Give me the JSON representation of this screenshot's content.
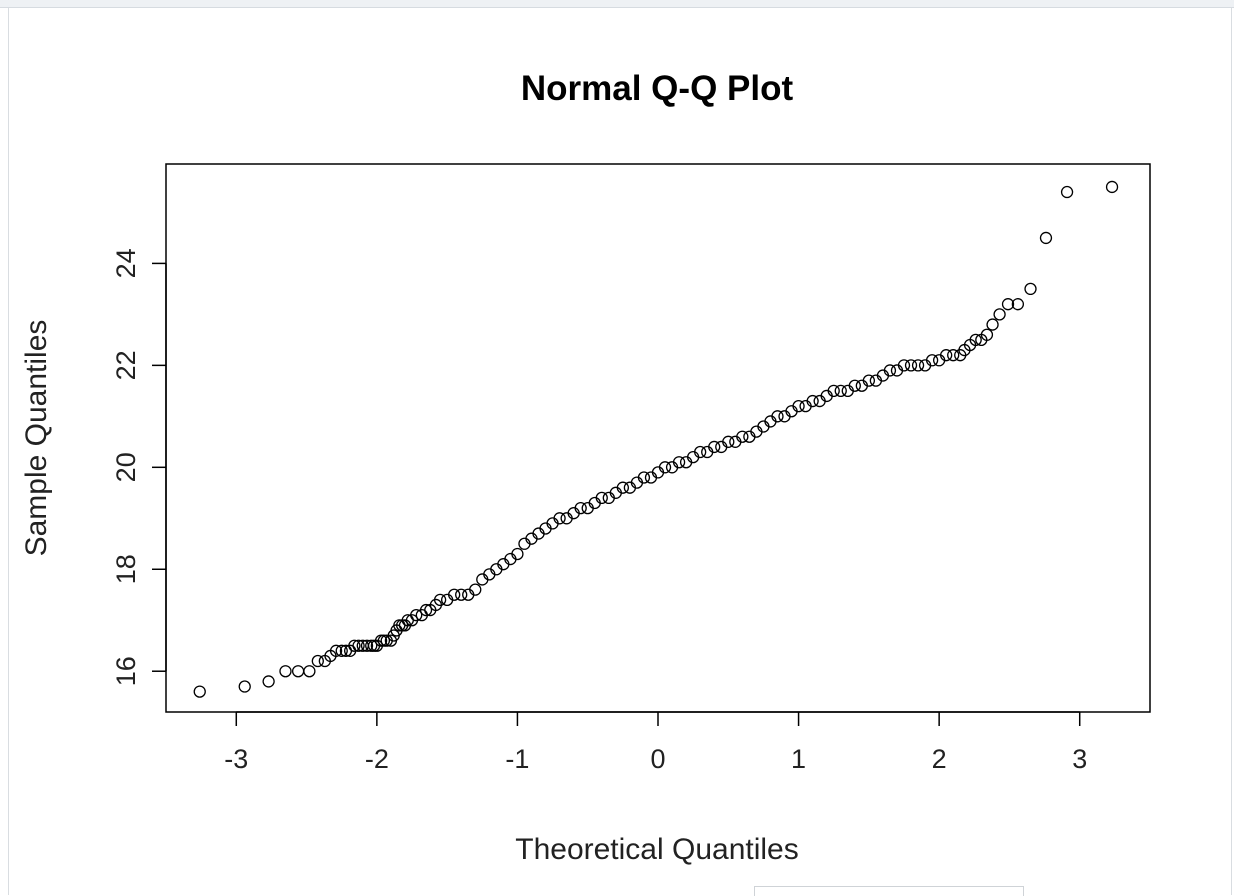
{
  "chart_data": {
    "type": "scatter",
    "title": "Normal Q-Q Plot",
    "xlabel": "Theoretical Quantiles",
    "ylabel": "Sample Quantiles",
    "xlim": [
      -3.5,
      3.5
    ],
    "ylim": [
      15.2,
      25.95
    ],
    "x_ticks": [
      -3,
      -2,
      -1,
      0,
      1,
      2,
      3
    ],
    "y_ticks": [
      16,
      18,
      20,
      22,
      24
    ],
    "grid": false,
    "legend": "none",
    "marker": "open-circle",
    "points": [
      [
        -3.26,
        15.6
      ],
      [
        -2.94,
        15.7
      ],
      [
        -2.77,
        15.8
      ],
      [
        -2.65,
        16.0
      ],
      [
        -2.56,
        16.0
      ],
      [
        -2.48,
        16.0
      ],
      [
        -2.42,
        16.2
      ],
      [
        -2.37,
        16.2
      ],
      [
        -2.33,
        16.3
      ],
      [
        -2.29,
        16.4
      ],
      [
        -2.25,
        16.4
      ],
      [
        -2.22,
        16.4
      ],
      [
        -2.19,
        16.4
      ],
      [
        -2.16,
        16.5
      ],
      [
        -2.13,
        16.5
      ],
      [
        -2.1,
        16.5
      ],
      [
        -2.07,
        16.5
      ],
      [
        -2.04,
        16.5
      ],
      [
        -2.02,
        16.5
      ],
      [
        -2.0,
        16.5
      ],
      [
        -1.97,
        16.6
      ],
      [
        -1.95,
        16.6
      ],
      [
        -1.93,
        16.6
      ],
      [
        -1.9,
        16.6
      ],
      [
        -1.88,
        16.7
      ],
      [
        -1.86,
        16.8
      ],
      [
        -1.84,
        16.9
      ],
      [
        -1.82,
        16.9
      ],
      [
        -1.8,
        16.9
      ],
      [
        -1.78,
        17.0
      ],
      [
        -1.75,
        17.0
      ],
      [
        -1.72,
        17.1
      ],
      [
        -1.68,
        17.1
      ],
      [
        -1.65,
        17.2
      ],
      [
        -1.62,
        17.2
      ],
      [
        -1.58,
        17.3
      ],
      [
        -1.55,
        17.4
      ],
      [
        -1.5,
        17.4
      ],
      [
        -1.45,
        17.5
      ],
      [
        -1.4,
        17.5
      ],
      [
        -1.35,
        17.5
      ],
      [
        -1.3,
        17.6
      ],
      [
        -1.25,
        17.8
      ],
      [
        -1.2,
        17.9
      ],
      [
        -1.15,
        18.0
      ],
      [
        -1.1,
        18.1
      ],
      [
        -1.05,
        18.2
      ],
      [
        -1.0,
        18.3
      ],
      [
        -0.95,
        18.5
      ],
      [
        -0.9,
        18.6
      ],
      [
        -0.85,
        18.7
      ],
      [
        -0.8,
        18.8
      ],
      [
        -0.75,
        18.9
      ],
      [
        -0.7,
        19.0
      ],
      [
        -0.65,
        19.0
      ],
      [
        -0.6,
        19.1
      ],
      [
        -0.55,
        19.2
      ],
      [
        -0.5,
        19.2
      ],
      [
        -0.45,
        19.3
      ],
      [
        -0.4,
        19.4
      ],
      [
        -0.35,
        19.4
      ],
      [
        -0.3,
        19.5
      ],
      [
        -0.25,
        19.6
      ],
      [
        -0.2,
        19.6
      ],
      [
        -0.15,
        19.7
      ],
      [
        -0.1,
        19.8
      ],
      [
        -0.05,
        19.8
      ],
      [
        0.0,
        19.9
      ],
      [
        0.05,
        20.0
      ],
      [
        0.1,
        20.0
      ],
      [
        0.15,
        20.1
      ],
      [
        0.2,
        20.1
      ],
      [
        0.25,
        20.2
      ],
      [
        0.3,
        20.3
      ],
      [
        0.35,
        20.3
      ],
      [
        0.4,
        20.4
      ],
      [
        0.45,
        20.4
      ],
      [
        0.5,
        20.5
      ],
      [
        0.55,
        20.5
      ],
      [
        0.6,
        20.6
      ],
      [
        0.65,
        20.6
      ],
      [
        0.7,
        20.7
      ],
      [
        0.75,
        20.8
      ],
      [
        0.8,
        20.9
      ],
      [
        0.85,
        21.0
      ],
      [
        0.9,
        21.0
      ],
      [
        0.95,
        21.1
      ],
      [
        1.0,
        21.2
      ],
      [
        1.05,
        21.2
      ],
      [
        1.1,
        21.3
      ],
      [
        1.15,
        21.3
      ],
      [
        1.2,
        21.4
      ],
      [
        1.25,
        21.5
      ],
      [
        1.3,
        21.5
      ],
      [
        1.35,
        21.5
      ],
      [
        1.4,
        21.6
      ],
      [
        1.45,
        21.6
      ],
      [
        1.5,
        21.7
      ],
      [
        1.55,
        21.7
      ],
      [
        1.6,
        21.8
      ],
      [
        1.65,
        21.9
      ],
      [
        1.7,
        21.9
      ],
      [
        1.75,
        22.0
      ],
      [
        1.8,
        22.0
      ],
      [
        1.85,
        22.0
      ],
      [
        1.9,
        22.0
      ],
      [
        1.95,
        22.1
      ],
      [
        2.0,
        22.1
      ],
      [
        2.05,
        22.2
      ],
      [
        2.1,
        22.2
      ],
      [
        2.15,
        22.2
      ],
      [
        2.18,
        22.3
      ],
      [
        2.22,
        22.4
      ],
      [
        2.26,
        22.5
      ],
      [
        2.3,
        22.5
      ],
      [
        2.34,
        22.6
      ],
      [
        2.38,
        22.8
      ],
      [
        2.43,
        23.0
      ],
      [
        2.49,
        23.2
      ],
      [
        2.56,
        23.2
      ],
      [
        2.65,
        23.5
      ],
      [
        2.76,
        24.5
      ],
      [
        2.91,
        25.4
      ],
      [
        3.23,
        25.5
      ]
    ]
  }
}
